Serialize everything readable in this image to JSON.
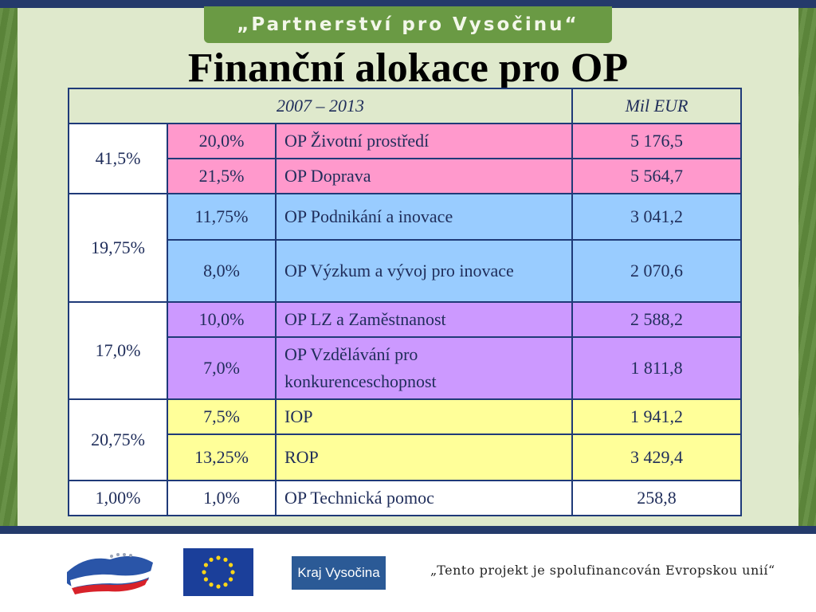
{
  "banner": "„Partnerství pro Vysočinu“",
  "title": "Finanční alokace pro OP",
  "table": {
    "header": {
      "period": "2007 – 2013",
      "unit": "Mil EUR"
    },
    "groups": [
      {
        "group_share": "41,5%",
        "color": "#ff99cc",
        "rows": [
          {
            "share": "20,0%",
            "program": "OP Životní prostředí",
            "amount": "5 176,5"
          },
          {
            "share": "21,5%",
            "program": "OP Doprava",
            "amount": "5 564,7"
          }
        ]
      },
      {
        "group_share": "19,75%",
        "color": "#99ccff",
        "rows": [
          {
            "share": "11,75%",
            "program": "OP Podnikání a inovace",
            "amount": "3 041,2"
          },
          {
            "share": "8,0%",
            "program": "OP Výzkum a vývoj pro inovace",
            "amount": "2 070,6"
          }
        ]
      },
      {
        "group_share": "17,0%",
        "color": "#cc99ff",
        "rows": [
          {
            "share": "10,0%",
            "program": "OP LZ a Zaměstnanost",
            "amount": "2 588,2"
          },
          {
            "share": "7,0%",
            "program": "OP Vzdělávání pro konkurenceschopnost",
            "amount": "1 811,8"
          }
        ]
      },
      {
        "group_share": "20,75%",
        "color": "#ffff99",
        "rows": [
          {
            "share": "7,5%",
            "program": "IOP",
            "amount": "1 941,2"
          },
          {
            "share": "13,25%",
            "program": "ROP",
            "amount": "3 429,4"
          }
        ]
      },
      {
        "group_share": "1,00%",
        "color": "#ffffff",
        "rows": [
          {
            "share": "1,0%",
            "program": "OP Technická pomoc",
            "amount": "258,8"
          }
        ]
      }
    ]
  },
  "footer": {
    "kraj_logo": "Kraj Vysočina",
    "note": "„Tento projekt je spolufinancován Evropskou unií“"
  },
  "icons": [
    "cz-flag-logo-icon",
    "eu-flag-icon",
    "kraj-vysocina-logo-icon"
  ]
}
